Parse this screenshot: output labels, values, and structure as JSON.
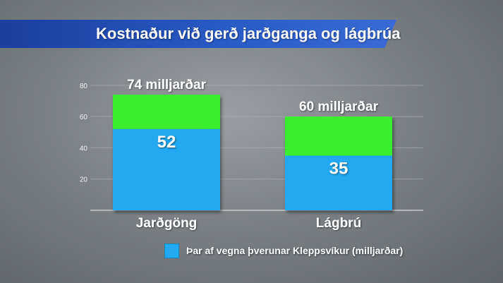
{
  "title": "Kostnaður við gerð jarðganga og lágbrúa",
  "chart_data": {
    "type": "bar",
    "stacked": true,
    "categories": [
      "Jarðgöng",
      "Lágbrú"
    ],
    "series": [
      {
        "name": "Þar af vegna þverunar Kleppsvíkur (milljarðar)",
        "values": [
          52,
          35
        ],
        "color": "#21a9f2",
        "data_labels": [
          "52",
          "35"
        ]
      },
      {
        "values": [
          22,
          25
        ],
        "color": "#37ee2e"
      }
    ],
    "total_labels": [
      "74 milljarðar",
      "60 milljarðar"
    ],
    "y_ticks": [
      20,
      40,
      60,
      80
    ],
    "ylim": [
      0,
      84
    ],
    "grid": true
  },
  "legend": {
    "label": "Þar af vegna þverunar Kleppsvíkur (milljarðar)",
    "color": "#21a9f2"
  }
}
